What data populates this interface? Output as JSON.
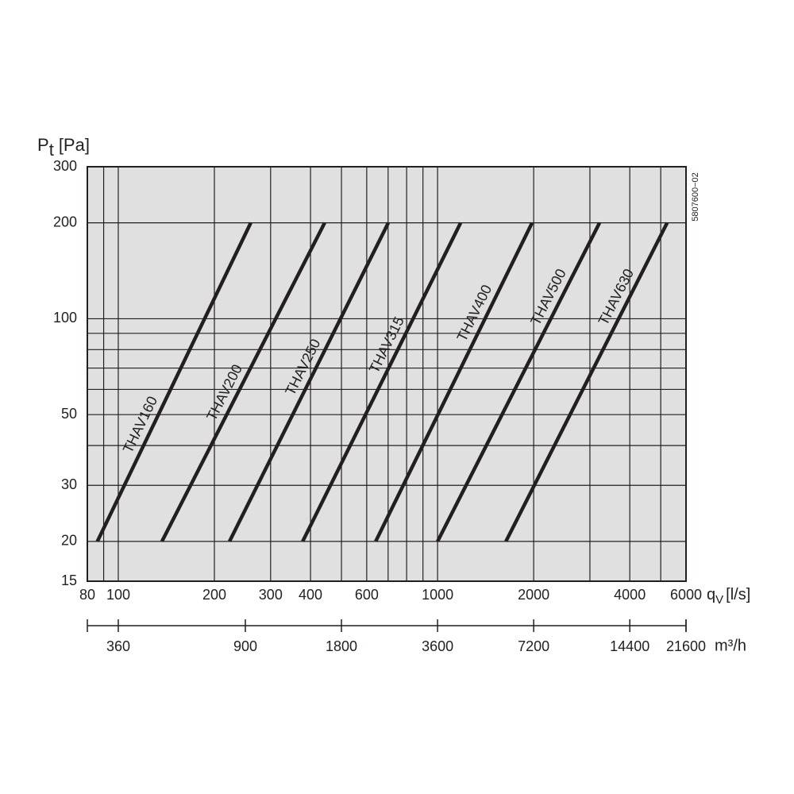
{
  "chart_data": {
    "type": "line",
    "ylabel": {
      "symbol": "P",
      "sub": "t",
      "unit": "[Pa]"
    },
    "xlabel": {
      "symbol": "q",
      "sub": "V",
      "unit": "[l/s]"
    },
    "x2label": "m³/h",
    "code": "5807600−02",
    "log_x": true,
    "log_y": true,
    "grid": true,
    "xlim": [
      80,
      6000
    ],
    "xticks": [
      80,
      100,
      200,
      300,
      400,
      600,
      1000,
      2000,
      4000,
      6000
    ],
    "xminor": [
      90,
      500,
      700,
      800,
      900,
      3000,
      5000
    ],
    "ylim": [
      15,
      300
    ],
    "yticks": [
      15,
      20,
      30,
      50,
      100,
      200,
      300
    ],
    "yminor": [
      40,
      60,
      70,
      80,
      90
    ],
    "x2lim": [
      288,
      21600
    ],
    "x2ticks": [
      360,
      900,
      1800,
      3600,
      7200,
      14400,
      21600
    ],
    "background": "#e0e0e1",
    "series": [
      {
        "name": "THAV160",
        "color": "#231f20",
        "x": [
          86,
          260
        ],
        "values": [
          20,
          200
        ]
      },
      {
        "name": "THAV200",
        "color": "#231f20",
        "x": [
          137,
          443
        ],
        "values": [
          20,
          200
        ]
      },
      {
        "name": "THAV250",
        "color": "#231f20",
        "x": [
          223,
          701
        ],
        "values": [
          20,
          200
        ]
      },
      {
        "name": "THAV315",
        "color": "#231f20",
        "x": [
          378,
          1181
        ],
        "values": [
          20,
          200
        ]
      },
      {
        "name": "THAV400",
        "color": "#231f20",
        "x": [
          640,
          1977
        ],
        "values": [
          20,
          200
        ]
      },
      {
        "name": "THAV500",
        "color": "#231f20",
        "x": [
          1000,
          3216
        ],
        "values": [
          20,
          200
        ]
      },
      {
        "name": "THAV630",
        "color": "#231f20",
        "x": [
          1637,
          5237
        ],
        "values": [
          20,
          200
        ]
      }
    ]
  }
}
